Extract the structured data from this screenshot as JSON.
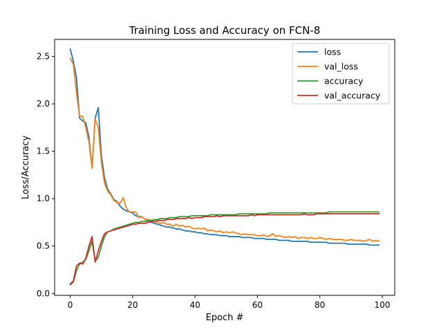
{
  "chart_data": {
    "type": "line",
    "title": "Training Loss and Accuracy on FCN-8",
    "xlabel": "Epoch #",
    "ylabel": "Loss/Accuracy",
    "xlim": [
      -5,
      104
    ],
    "ylim": [
      -0.02,
      2.68
    ],
    "x_ticks": [
      0,
      20,
      40,
      60,
      80,
      100
    ],
    "y_ticks": [
      0.0,
      0.5,
      1.0,
      1.5,
      2.0,
      2.5
    ],
    "x_tick_labels": [
      "0",
      "20",
      "40",
      "60",
      "80",
      "100"
    ],
    "y_tick_labels": [
      "0.0",
      "0.5",
      "1.0",
      "1.5",
      "2.0",
      "2.5"
    ],
    "grid": false,
    "legend_position": "top-right",
    "x": [
      0,
      1,
      2,
      3,
      4,
      5,
      6,
      7,
      8,
      9,
      10,
      11,
      12,
      13,
      14,
      15,
      16,
      17,
      18,
      19,
      20,
      21,
      22,
      23,
      24,
      25,
      26,
      27,
      28,
      29,
      30,
      31,
      32,
      33,
      34,
      35,
      36,
      37,
      38,
      39,
      40,
      41,
      42,
      43,
      44,
      45,
      46,
      47,
      48,
      49,
      50,
      51,
      52,
      53,
      54,
      55,
      56,
      57,
      58,
      59,
      60,
      61,
      62,
      63,
      64,
      65,
      66,
      67,
      68,
      69,
      70,
      71,
      72,
      73,
      74,
      75,
      76,
      77,
      78,
      79,
      80,
      81,
      82,
      83,
      84,
      85,
      86,
      87,
      88,
      89,
      90,
      91,
      92,
      93,
      94,
      95,
      96,
      97,
      98,
      99
    ],
    "series": [
      {
        "name": "loss",
        "color": "#1f77b4",
        "values": [
          2.58,
          2.45,
          2.28,
          1.85,
          1.82,
          1.8,
          1.65,
          1.32,
          1.85,
          1.96,
          1.45,
          1.22,
          1.1,
          1.05,
          0.99,
          0.97,
          0.92,
          0.89,
          0.87,
          0.86,
          0.85,
          0.82,
          0.81,
          0.81,
          0.78,
          0.76,
          0.75,
          0.74,
          0.73,
          0.72,
          0.71,
          0.7,
          0.7,
          0.69,
          0.68,
          0.68,
          0.67,
          0.66,
          0.66,
          0.65,
          0.65,
          0.64,
          0.64,
          0.63,
          0.63,
          0.62,
          0.62,
          0.62,
          0.61,
          0.61,
          0.61,
          0.6,
          0.6,
          0.6,
          0.6,
          0.59,
          0.59,
          0.59,
          0.59,
          0.58,
          0.58,
          0.58,
          0.58,
          0.57,
          0.57,
          0.57,
          0.57,
          0.56,
          0.56,
          0.56,
          0.56,
          0.55,
          0.55,
          0.55,
          0.55,
          0.55,
          0.55,
          0.54,
          0.54,
          0.54,
          0.54,
          0.54,
          0.54,
          0.53,
          0.53,
          0.53,
          0.53,
          0.53,
          0.53,
          0.52,
          0.52,
          0.52,
          0.52,
          0.52,
          0.52,
          0.52,
          0.51,
          0.51,
          0.51,
          0.51
        ]
      },
      {
        "name": "val_loss",
        "color": "#ff7f0e",
        "values": [
          2.48,
          2.42,
          2.12,
          1.87,
          1.87,
          1.75,
          1.6,
          1.32,
          1.84,
          1.75,
          1.38,
          1.16,
          1.08,
          1.04,
          0.98,
          0.96,
          0.95,
          1.01,
          0.9,
          0.86,
          0.86,
          0.86,
          0.8,
          0.81,
          0.78,
          0.78,
          0.77,
          0.76,
          0.75,
          0.74,
          0.75,
          0.73,
          0.73,
          0.71,
          0.73,
          0.71,
          0.72,
          0.7,
          0.71,
          0.69,
          0.68,
          0.69,
          0.68,
          0.69,
          0.66,
          0.67,
          0.66,
          0.65,
          0.66,
          0.64,
          0.65,
          0.64,
          0.65,
          0.64,
          0.63,
          0.62,
          0.63,
          0.62,
          0.62,
          0.62,
          0.61,
          0.61,
          0.62,
          0.6,
          0.61,
          0.63,
          0.6,
          0.61,
          0.6,
          0.59,
          0.6,
          0.59,
          0.6,
          0.58,
          0.59,
          0.59,
          0.58,
          0.59,
          0.58,
          0.58,
          0.59,
          0.58,
          0.57,
          0.58,
          0.57,
          0.57,
          0.57,
          0.57,
          0.56,
          0.56,
          0.57,
          0.56,
          0.56,
          0.56,
          0.55,
          0.56,
          0.57,
          0.55,
          0.56,
          0.55
        ]
      },
      {
        "name": "accuracy",
        "color": "#2ca02c",
        "values": [
          0.09,
          0.12,
          0.24,
          0.31,
          0.33,
          0.36,
          0.45,
          0.55,
          0.34,
          0.38,
          0.5,
          0.6,
          0.65,
          0.66,
          0.68,
          0.69,
          0.7,
          0.71,
          0.72,
          0.73,
          0.74,
          0.75,
          0.75,
          0.76,
          0.76,
          0.77,
          0.77,
          0.78,
          0.78,
          0.79,
          0.79,
          0.79,
          0.8,
          0.8,
          0.8,
          0.81,
          0.81,
          0.81,
          0.81,
          0.82,
          0.82,
          0.82,
          0.82,
          0.82,
          0.82,
          0.83,
          0.83,
          0.83,
          0.83,
          0.83,
          0.83,
          0.83,
          0.83,
          0.83,
          0.84,
          0.84,
          0.84,
          0.84,
          0.84,
          0.84,
          0.84,
          0.84,
          0.84,
          0.84,
          0.85,
          0.85,
          0.85,
          0.85,
          0.85,
          0.85,
          0.85,
          0.85,
          0.85,
          0.85,
          0.85,
          0.85,
          0.85,
          0.85,
          0.85,
          0.85,
          0.85,
          0.85,
          0.85,
          0.86,
          0.86,
          0.86,
          0.86,
          0.86,
          0.86,
          0.86,
          0.86,
          0.86,
          0.86,
          0.86,
          0.86,
          0.86,
          0.86,
          0.86,
          0.86,
          0.86
        ]
      },
      {
        "name": "val_accuracy",
        "color": "#d62728",
        "values": [
          0.1,
          0.13,
          0.29,
          0.32,
          0.31,
          0.37,
          0.5,
          0.6,
          0.33,
          0.45,
          0.55,
          0.63,
          0.65,
          0.66,
          0.67,
          0.68,
          0.69,
          0.7,
          0.71,
          0.72,
          0.73,
          0.73,
          0.74,
          0.74,
          0.74,
          0.75,
          0.76,
          0.76,
          0.77,
          0.77,
          0.77,
          0.78,
          0.78,
          0.78,
          0.79,
          0.79,
          0.79,
          0.79,
          0.8,
          0.79,
          0.8,
          0.8,
          0.8,
          0.81,
          0.81,
          0.81,
          0.81,
          0.82,
          0.81,
          0.82,
          0.82,
          0.82,
          0.82,
          0.82,
          0.82,
          0.82,
          0.82,
          0.82,
          0.83,
          0.82,
          0.83,
          0.83,
          0.83,
          0.83,
          0.83,
          0.83,
          0.83,
          0.83,
          0.83,
          0.83,
          0.83,
          0.83,
          0.83,
          0.83,
          0.83,
          0.84,
          0.83,
          0.83,
          0.83,
          0.84,
          0.84,
          0.84,
          0.84,
          0.84,
          0.84,
          0.84,
          0.84,
          0.84,
          0.84,
          0.84,
          0.84,
          0.84,
          0.84,
          0.84,
          0.84,
          0.84,
          0.84,
          0.84,
          0.84,
          0.84
        ]
      }
    ]
  }
}
